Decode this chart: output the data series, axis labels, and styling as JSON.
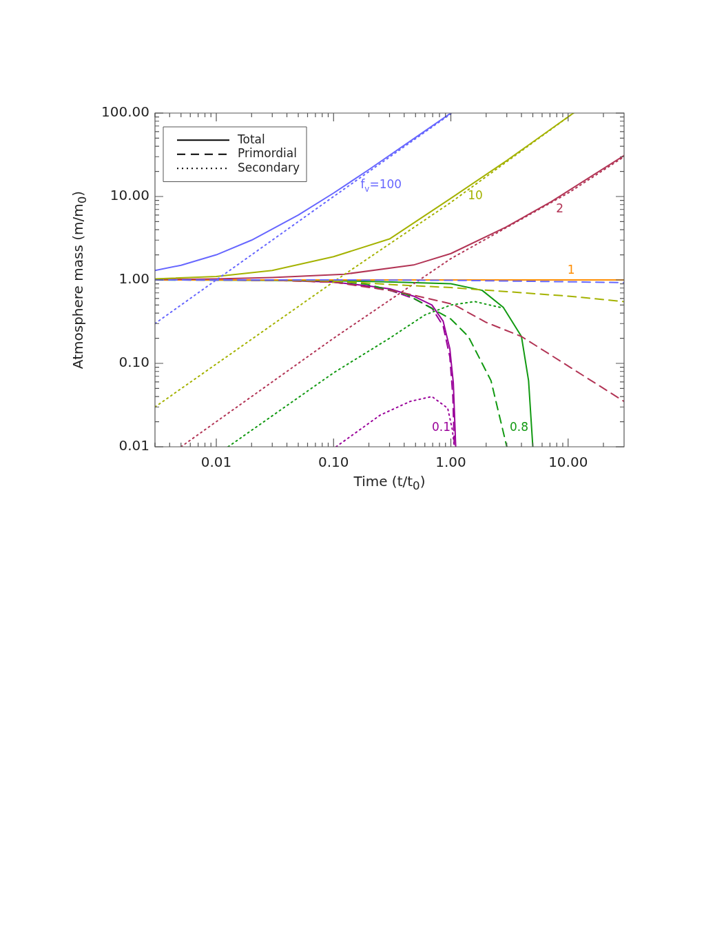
{
  "chart_data": {
    "type": "line",
    "xlabel": "Time (t/t$_{0}$)",
    "ylabel": "Atmosphere mass (m/m$_{0}$)",
    "log": "xy",
    "grid": false,
    "legend": "top left",
    "marker": "none",
    "xlim": [
      0.003,
      30
    ],
    "ylim": [
      0.01,
      100
    ],
    "xticks": [
      {
        "value": 0.003,
        "label": null
      },
      {
        "value": 0.004,
        "label": null
      },
      {
        "value": 0.005,
        "label": null
      },
      {
        "value": 0.006,
        "label": null
      },
      {
        "value": 0.007,
        "label": null
      },
      {
        "value": 0.008,
        "label": null
      },
      {
        "value": 0.009,
        "label": null
      },
      {
        "value": 0.01,
        "label": "0.01"
      },
      {
        "value": 0.02,
        "label": null
      },
      {
        "value": 0.03,
        "label": null
      },
      {
        "value": 0.04,
        "label": null
      },
      {
        "value": 0.05,
        "label": null
      },
      {
        "value": 0.06,
        "label": null
      },
      {
        "value": 0.07,
        "label": null
      },
      {
        "value": 0.08,
        "label": null
      },
      {
        "value": 0.09,
        "label": null
      },
      {
        "value": 0.1,
        "label": "0.10"
      },
      {
        "value": 0.2,
        "label": null
      },
      {
        "value": 0.3,
        "label": null
      },
      {
        "value": 0.4,
        "label": null
      },
      {
        "value": 0.5,
        "label": null
      },
      {
        "value": 0.6,
        "label": null
      },
      {
        "value": 0.7,
        "label": null
      },
      {
        "value": 0.8,
        "label": null
      },
      {
        "value": 0.9,
        "label": null
      },
      {
        "value": 1,
        "label": "1.00"
      },
      {
        "value": 2,
        "label": null
      },
      {
        "value": 3,
        "label": null
      },
      {
        "value": 4,
        "label": null
      },
      {
        "value": 5,
        "label": null
      },
      {
        "value": 6,
        "label": null
      },
      {
        "value": 7,
        "label": null
      },
      {
        "value": 8,
        "label": null
      },
      {
        "value": 9,
        "label": null
      },
      {
        "value": 10,
        "label": "10.00"
      },
      {
        "value": 20,
        "label": null
      }
    ],
    "yticks": [
      {
        "value": 0.01,
        "label": "0.01"
      },
      {
        "value": 0.02,
        "label": null
      },
      {
        "value": 0.03,
        "label": null
      },
      {
        "value": 0.04,
        "label": null
      },
      {
        "value": 0.05,
        "label": null
      },
      {
        "value": 0.06,
        "label": null
      },
      {
        "value": 0.07,
        "label": null
      },
      {
        "value": 0.08,
        "label": null
      },
      {
        "value": 0.09,
        "label": null
      },
      {
        "value": 0.1,
        "label": "0.10"
      },
      {
        "value": 0.2,
        "label": null
      },
      {
        "value": 0.3,
        "label": null
      },
      {
        "value": 0.4,
        "label": null
      },
      {
        "value": 0.5,
        "label": null
      },
      {
        "value": 0.6,
        "label": null
      },
      {
        "value": 0.7,
        "label": null
      },
      {
        "value": 0.8,
        "label": null
      },
      {
        "value": 0.9,
        "label": null
      },
      {
        "value": 1,
        "label": "1.00"
      },
      {
        "value": 2,
        "label": null
      },
      {
        "value": 3,
        "label": null
      },
      {
        "value": 4,
        "label": null
      },
      {
        "value": 5,
        "label": null
      },
      {
        "value": 6,
        "label": null
      },
      {
        "value": 7,
        "label": null
      },
      {
        "value": 8,
        "label": null
      },
      {
        "value": 9,
        "label": null
      },
      {
        "value": 10,
        "label": "10.00"
      },
      {
        "value": 20,
        "label": null
      },
      {
        "value": 30,
        "label": null
      },
      {
        "value": 40,
        "label": null
      },
      {
        "value": 50,
        "label": null
      },
      {
        "value": 60,
        "label": null
      },
      {
        "value": 70,
        "label": null
      },
      {
        "value": 80,
        "label": null
      },
      {
        "value": 90,
        "label": null
      },
      {
        "value": 100,
        "label": "100.00"
      }
    ],
    "series": [
      {
        "name": "Total",
        "color": "#000000",
        "line_style": "solid"
      },
      {
        "name": "Primordial",
        "color": "#000000",
        "line_style": "dashed"
      },
      {
        "name": "Secondary",
        "color": "#000000",
        "line_style": "dotted"
      },
      {
        "name": "f$_{v}$=100",
        "color": "#6666ff",
        "line_style": "solid",
        "x": [
          0.003,
          0.005,
          0.01,
          0.02,
          0.05,
          0.1,
          0.2,
          0.5,
          1.0
        ],
        "values": [
          1.3,
          1.5,
          2.0,
          3.0,
          6.0,
          11,
          21,
          51,
          100
        ]
      },
      {
        "color": "#6666ff",
        "line_style": "dashed",
        "x": [
          0.003,
          0.1,
          1,
          10,
          30
        ],
        "values": [
          1.0,
          1.0,
          0.99,
          0.95,
          0.93
        ]
      },
      {
        "color": "#6666ff",
        "line_style": "dotted",
        "x": [
          0.003,
          0.1,
          1.0
        ],
        "values": [
          0.3,
          10,
          98
        ]
      },
      {
        "name": "10",
        "color": "#a4b200",
        "line_style": "solid",
        "x": [
          0.003,
          0.01,
          0.03,
          0.1,
          0.3,
          1,
          3,
          11.1
        ],
        "values": [
          1.03,
          1.1,
          1.3,
          1.9,
          3.1,
          9.5,
          27,
          100
        ]
      },
      {
        "color": "#a4b200",
        "line_style": "dashed",
        "x": [
          0.003,
          0.03,
          0.1,
          0.36,
          1,
          10,
          30
        ],
        "values": [
          1.0,
          1.0,
          0.97,
          0.87,
          0.81,
          0.64,
          0.55
        ]
      },
      {
        "color": "#a4b200",
        "line_style": "dotted",
        "x": [
          0.003,
          0.1,
          1,
          11.1
        ],
        "values": [
          0.03,
          0.95,
          8.5,
          100
        ]
      },
      {
        "name": "2",
        "color": "#b23455",
        "line_style": "solid",
        "x": [
          0.003,
          0.01,
          0.03,
          0.123,
          0.48,
          1,
          2.95,
          7.2,
          30
        ],
        "values": [
          1.01,
          1.03,
          1.07,
          1.17,
          1.51,
          2.07,
          4.3,
          8.7,
          31
        ]
      },
      {
        "color": "#b23455",
        "line_style": "dashed",
        "x": [
          0.003,
          0.03,
          0.1,
          0.36,
          1.05,
          2,
          4,
          30
        ],
        "values": [
          1.0,
          0.99,
          0.94,
          0.72,
          0.51,
          0.31,
          0.21,
          0.035
        ]
      },
      {
        "color": "#b23455",
        "line_style": "dotted",
        "x": [
          0.005,
          0.1,
          1,
          10,
          30
        ],
        "values": [
          0.01,
          0.2,
          1.8,
          11,
          30
        ]
      },
      {
        "name": "1",
        "color": "#ff8c00",
        "line_style": "solid",
        "x": [
          0.003,
          30
        ],
        "values": [
          1.0,
          1.0
        ]
      },
      {
        "name": "0.8",
        "color": "#119911",
        "line_style": "solid",
        "x": [
          0.003,
          0.1,
          0.36,
          1,
          1.85,
          2.8,
          4.0,
          4.6,
          5.0
        ],
        "values": [
          1.0,
          0.98,
          0.94,
          0.9,
          0.75,
          0.47,
          0.21,
          0.062,
          0.01
        ]
      },
      {
        "color": "#119911",
        "line_style": "dashed",
        "x": [
          0.003,
          0.03,
          0.1,
          0.19,
          0.42,
          1,
          1.41,
          2.2,
          3.0
        ],
        "values": [
          1.0,
          1.0,
          0.97,
          0.89,
          0.67,
          0.34,
          0.21,
          0.062,
          0.01
        ]
      },
      {
        "color": "#119911",
        "line_style": "dotted",
        "x": [
          0.0126,
          0.1,
          0.3,
          0.6,
          1,
          1.6,
          2.8
        ],
        "values": [
          0.01,
          0.077,
          0.2,
          0.38,
          0.5,
          0.55,
          0.46
        ]
      },
      {
        "name": "0.1",
        "color": "#990099",
        "line_style": "solid",
        "x": [
          0.003,
          0.03,
          0.103,
          0.194,
          0.303,
          0.48,
          0.69,
          0.86,
          0.98,
          1.05,
          1.1
        ],
        "values": [
          1.0,
          1.0,
          0.94,
          0.85,
          0.78,
          0.64,
          0.5,
          0.32,
          0.15,
          0.058,
          0.01
        ]
      },
      {
        "color": "#990099",
        "line_style": "dashed",
        "x": [
          0.003,
          0.03,
          0.103,
          0.194,
          0.303,
          0.48,
          0.69,
          0.86,
          0.98,
          1.04,
          1.07
        ],
        "values": [
          1.0,
          1.0,
          0.94,
          0.83,
          0.75,
          0.6,
          0.46,
          0.28,
          0.12,
          0.04,
          0.01
        ]
      },
      {
        "color": "#990099",
        "line_style": "dotted",
        "x": [
          0.105,
          0.25,
          0.45,
          0.69,
          0.94,
          1.03,
          1.07
        ],
        "values": [
          0.01,
          0.024,
          0.035,
          0.04,
          0.029,
          0.016,
          0.01
        ]
      }
    ]
  }
}
